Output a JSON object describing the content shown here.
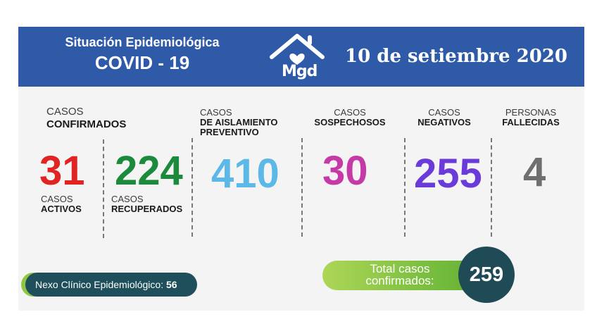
{
  "header": {
    "title_line1": "Situación Epidemiológica",
    "title_line2": "COVID - 19",
    "logo_text": "Mgd",
    "date": "10 de setiembre 2020",
    "colors": {
      "banner": "#2e5aa8",
      "text": "#ffffff"
    }
  },
  "confirmed": {
    "label_top": "CASOS",
    "label_bold": "CONFIRMADOS",
    "active": {
      "value": "31",
      "label_top": "CASOS",
      "label_bold": "ACTIVOS",
      "color": "#e02424"
    },
    "recovered": {
      "value": "224",
      "label_top": "CASOS",
      "label_bold": "RECUPERADOS",
      "color": "#1b8a3c"
    }
  },
  "isolation": {
    "label_top": "CASOS",
    "label_bold1": "DE AISLAMIENTO",
    "label_bold2": "PREVENTIVO",
    "value": "410",
    "color": "#5cb8e6"
  },
  "suspected": {
    "label_top": "CASOS",
    "label_bold": "SOSPECHOSOS",
    "value": "30",
    "color": "#c63aa8"
  },
  "negative": {
    "label_top": "CASOS",
    "label_bold": "NEGATIVOS",
    "value": "255",
    "color": "#6a3bd8"
  },
  "deceased": {
    "label_top": "PERSONAS",
    "label_bold": "FALLECIDAS",
    "value": "4",
    "color": "#6f6f6f"
  },
  "nexo": {
    "label": "Nexo Clínico Epidemiológico:",
    "value": "56"
  },
  "total": {
    "label_line1": "Total casos",
    "label_line2": "confirmados:",
    "value": "259"
  }
}
